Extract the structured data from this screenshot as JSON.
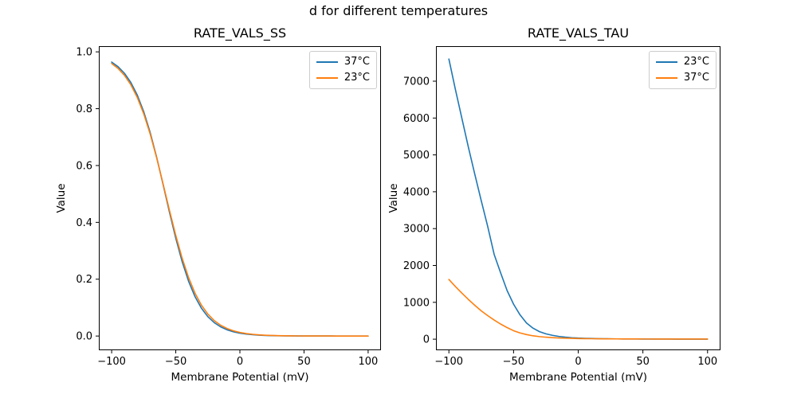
{
  "figure": {
    "suptitle": "d for different temperatures",
    "background": "#ffffff",
    "text_color": "#000000",
    "spine_color": "#000000"
  },
  "chart_data": [
    {
      "type": "line",
      "title": "RATE_VALS_SS",
      "xlabel": "Membrane Potential (mV)",
      "ylabel": "Value",
      "xlim": [
        -110,
        110
      ],
      "ylim": [
        -0.05,
        1.02
      ],
      "grid": false,
      "legend_position": "upper right",
      "xticks": [
        -100,
        -50,
        0,
        50,
        100
      ],
      "xtick_labels": [
        "−100",
        "−50",
        "0",
        "50",
        "100"
      ],
      "yticks": [
        0.0,
        0.2,
        0.4,
        0.6,
        0.8,
        1.0
      ],
      "ytick_labels": [
        "0.0",
        "0.2",
        "0.4",
        "0.6",
        "0.8",
        "1.0"
      ],
      "x": [
        -100,
        -95,
        -90,
        -85,
        -80,
        -75,
        -70,
        -65,
        -60,
        -55,
        -50,
        -45,
        -40,
        -35,
        -30,
        -25,
        -20,
        -15,
        -10,
        -5,
        0,
        5,
        10,
        15,
        20,
        25,
        30,
        35,
        40,
        45,
        50,
        55,
        60,
        65,
        70,
        75,
        80,
        85,
        90,
        95,
        100
      ],
      "series": [
        {
          "name": "37°C",
          "color": "#1f77b4",
          "values": [
            0.9641,
            0.9477,
            0.9244,
            0.8919,
            0.8477,
            0.7896,
            0.7169,
            0.6307,
            0.5354,
            0.4373,
            0.344,
            0.2613,
            0.1926,
            0.1386,
            0.0979,
            0.0682,
            0.0471,
            0.0323,
            0.022,
            0.0149,
            0.0101,
            0.0068,
            0.0046,
            0.0031,
            0.0021,
            0.0014,
            0.001,
            0.0007,
            0.0005,
            0.0003,
            0.0002,
            0.0002,
            0.0001,
            0.0001,
            0.0001,
            0,
            0,
            0,
            0,
            0,
            0
          ]
        },
        {
          "name": "23°C",
          "color": "#ff7f0e",
          "values": [
            0.9592,
            0.9417,
            0.9173,
            0.8839,
            0.8394,
            0.7822,
            0.7114,
            0.6286,
            0.5375,
            0.4438,
            0.354,
            0.2734,
            0.2053,
            0.1507,
            0.1086,
            0.0772,
            0.0543,
            0.0379,
            0.0264,
            0.0183,
            0.0126,
            0.0087,
            0.006,
            0.0041,
            0.0028,
            0.002,
            0.0013,
            0.0009,
            0.0006,
            0.0004,
            0.0003,
            0.0002,
            0.0001,
            0.0001,
            0.0001,
            0,
            0,
            0,
            0,
            0,
            0
          ]
        }
      ]
    },
    {
      "type": "line",
      "title": "RATE_VALS_TAU",
      "xlabel": "Membrane Potential (mV)",
      "ylabel": "Value",
      "xlim": [
        -110,
        110
      ],
      "ylim": [
        -300,
        7950
      ],
      "grid": false,
      "legend_position": "upper right",
      "xticks": [
        -100,
        -50,
        0,
        50,
        100
      ],
      "xtick_labels": [
        "−100",
        "−50",
        "0",
        "50",
        "100"
      ],
      "yticks": [
        0,
        1000,
        2000,
        3000,
        4000,
        5000,
        6000,
        7000
      ],
      "ytick_labels": [
        "0",
        "1000",
        "2000",
        "3000",
        "4000",
        "5000",
        "6000",
        "7000"
      ],
      "x": [
        -100,
        -95,
        -90,
        -85,
        -80,
        -75,
        -70,
        -65,
        -60,
        -55,
        -50,
        -45,
        -40,
        -35,
        -30,
        -25,
        -20,
        -15,
        -10,
        -5,
        0,
        5,
        10,
        15,
        20,
        25,
        30,
        35,
        40,
        45,
        50,
        55,
        60,
        65,
        70,
        75,
        80,
        85,
        90,
        95,
        100
      ],
      "series": [
        {
          "name": "23°C",
          "color": "#1f77b4",
          "values": [
            7600,
            6780,
            6000,
            5220,
            4480,
            3760,
            3060,
            2300,
            1800,
            1320,
            950,
            660,
            440,
            300,
            205,
            145,
            105,
            75,
            55,
            40,
            30,
            24,
            19,
            15,
            12,
            10,
            8,
            7,
            6,
            5,
            4,
            4,
            3,
            3,
            3,
            2,
            2,
            2,
            2,
            2,
            2
          ]
        },
        {
          "name": "37°C",
          "color": "#ff7f0e",
          "values": [
            1620,
            1430,
            1250,
            1080,
            920,
            770,
            640,
            520,
            410,
            315,
            230,
            170,
            125,
            92,
            70,
            54,
            42,
            33,
            27,
            22,
            18,
            15,
            13,
            11,
            10,
            9,
            8,
            7,
            6,
            6,
            5,
            5,
            4,
            4,
            4,
            4,
            3,
            3,
            3,
            3,
            3
          ]
        }
      ]
    }
  ]
}
